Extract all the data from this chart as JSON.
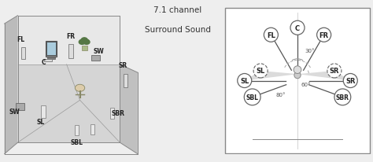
{
  "title_line1": "7.1 channel",
  "title_line2": "Surround Sound",
  "bg_color": "#eeeeee",
  "room_floor_color": "#d8d8d8",
  "room_left_wall_color": "#c8c8c8",
  "room_back_wall_color": "#e0e0e0",
  "room_right_floor_color": "#c0c0c0",
  "line_color": "#555555",
  "speaker_circle_color": "#555555",
  "dashed_color": "#aaaaaa",
  "shade_color": "#aaaaaa",
  "angle_30": "30°",
  "angle_60": "60°",
  "angle_80": "80°",
  "font_size_label": 5.5,
  "font_size_title": 7.5,
  "font_size_angle": 5.0,
  "speaker_r": 1.0,
  "circle_r": 0.13,
  "sbl_sbr_r": 0.15
}
